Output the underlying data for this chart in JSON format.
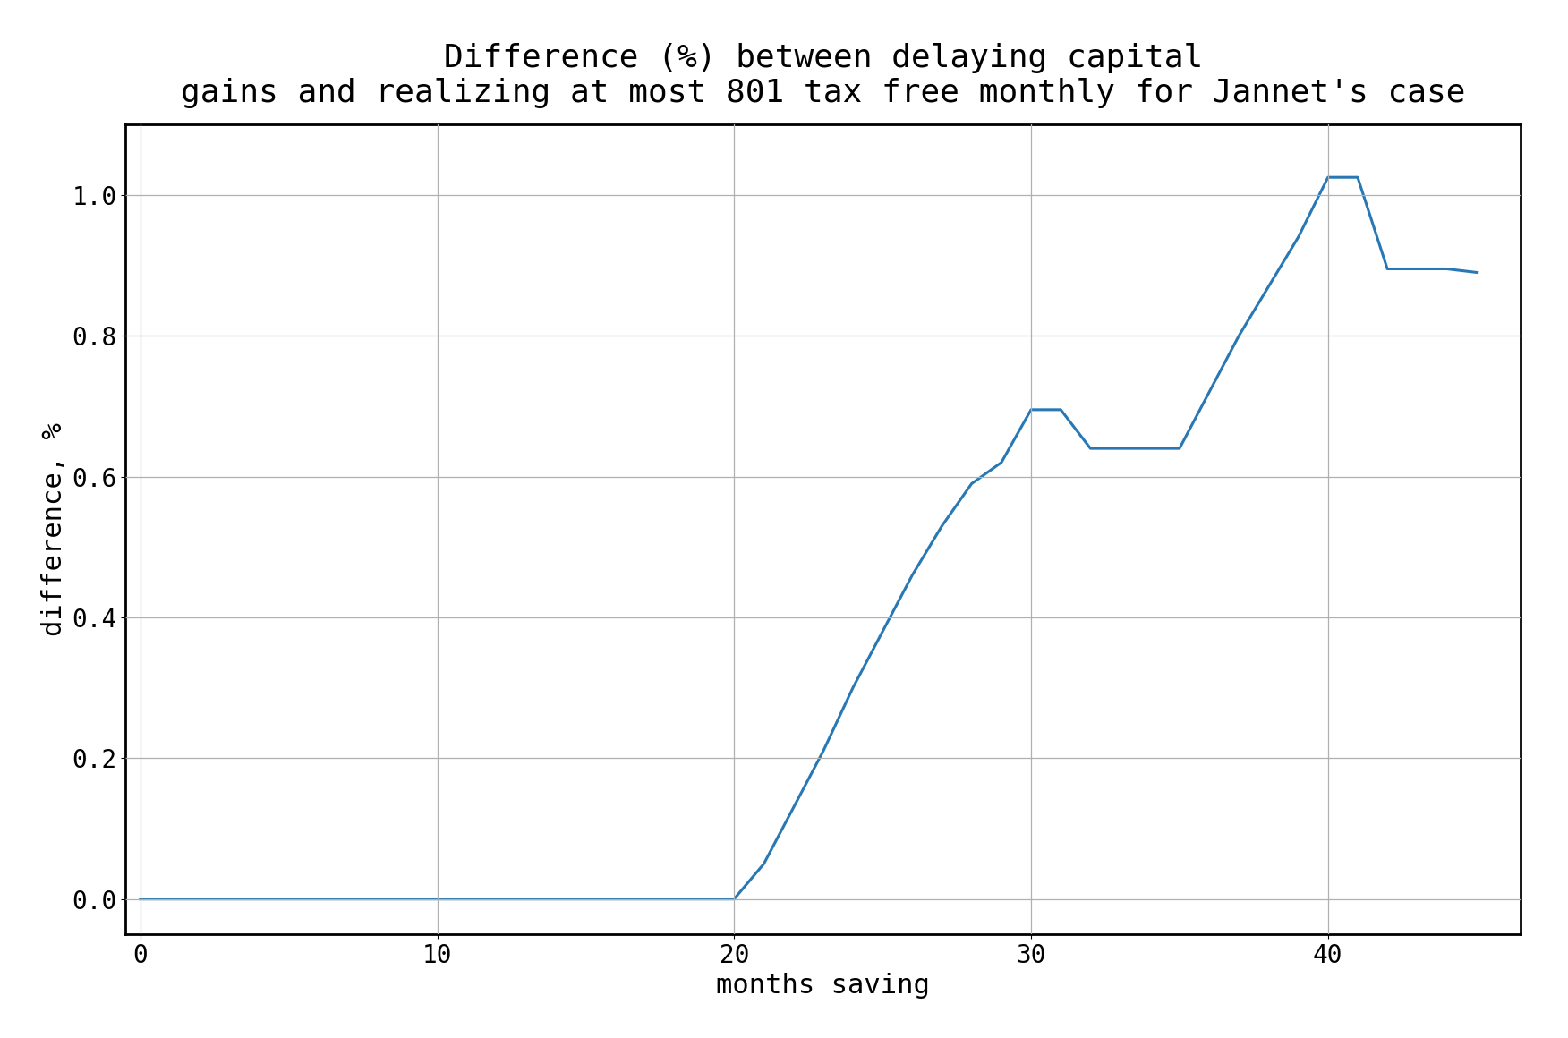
{
  "title": "Difference (%) between delaying capital\ngains and realizing at most 801 tax free monthly for Jannet's case",
  "xlabel": "months saving",
  "ylabel": "difference, %",
  "x": [
    0,
    1,
    2,
    3,
    4,
    5,
    6,
    7,
    8,
    9,
    10,
    11,
    12,
    13,
    14,
    15,
    16,
    17,
    18,
    19,
    20,
    21,
    22,
    23,
    24,
    25,
    26,
    27,
    28,
    29,
    30,
    31,
    32,
    33,
    34,
    35,
    36,
    37,
    38,
    39,
    40,
    41,
    42,
    43,
    44,
    45
  ],
  "y": [
    0.0,
    0.0,
    0.0,
    0.0,
    0.0,
    0.0,
    0.0,
    0.0,
    0.0,
    0.0,
    0.0,
    0.0,
    0.0,
    0.0,
    0.0,
    0.0,
    0.0,
    0.0,
    0.0,
    0.0,
    0.0,
    0.05,
    0.13,
    0.21,
    0.3,
    0.38,
    0.46,
    0.53,
    0.59,
    0.62,
    0.695,
    0.695,
    0.64,
    0.64,
    0.64,
    0.64,
    0.72,
    0.8,
    0.87,
    0.94,
    1.025,
    1.025,
    0.895,
    0.895,
    0.895,
    0.89
  ],
  "line_color": "#2878b5",
  "line_width": 2.2,
  "xlim": [
    -0.5,
    46.5
  ],
  "ylim": [
    -0.05,
    1.1
  ],
  "xticks": [
    0,
    10,
    20,
    30,
    40
  ],
  "yticks": [
    0.0,
    0.2,
    0.4,
    0.6,
    0.8,
    1.0
  ],
  "title_fontsize": 26,
  "label_fontsize": 22,
  "tick_fontsize": 20,
  "grid_color": "#b0b0b0",
  "grid_linewidth": 0.9,
  "background_color": "#ffffff",
  "spine_color": "#000000",
  "spine_linewidth": 2.0
}
